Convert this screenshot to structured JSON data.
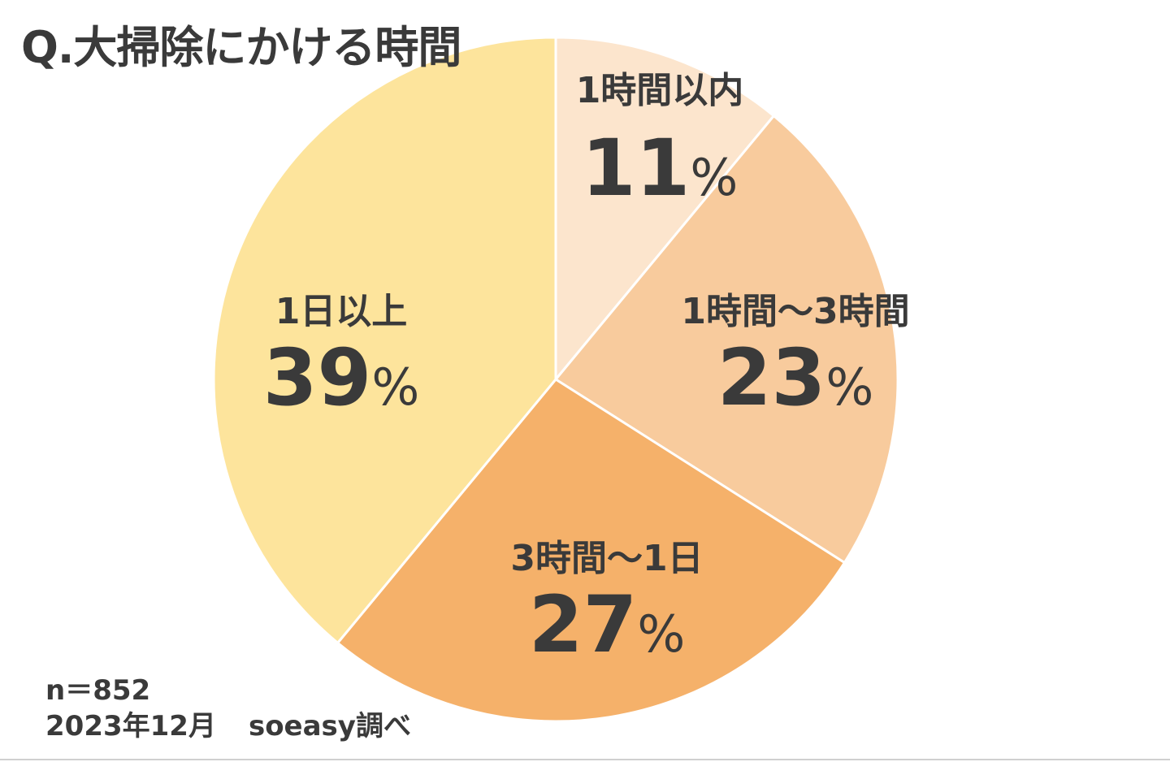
{
  "title": "Q.大掃除にかける時間",
  "chart_data": {
    "type": "pie",
    "title": "Q.大掃除にかける時間",
    "start_angle_deg": 0,
    "direction": "clockwise",
    "slices": [
      {
        "label": "1時間以内",
        "value": 11,
        "value_text": "11",
        "unit": "%",
        "color": "#FCE5CD"
      },
      {
        "label": "1時間〜3時間",
        "value": 23,
        "value_text": "23",
        "unit": "%",
        "color": "#F8CB9D"
      },
      {
        "label": "3時間〜1日",
        "value": 27,
        "value_text": "27",
        "unit": "%",
        "color": "#F5B16A"
      },
      {
        "label": "1日以上",
        "value": 39,
        "value_text": "39",
        "unit": "%",
        "color": "#FDE49C"
      }
    ]
  },
  "footer": {
    "n": "n＝852",
    "date": "2023年12月",
    "source": "soeasy調べ"
  }
}
